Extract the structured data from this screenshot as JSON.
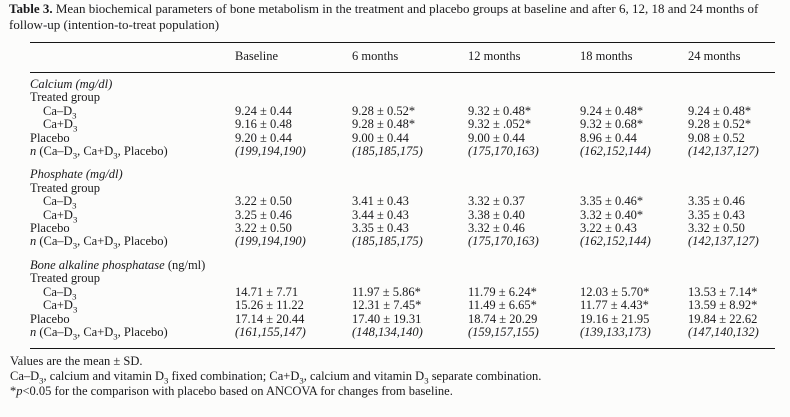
{
  "caption": {
    "label": "Table 3.",
    "text": "Mean biochemical parameters of bone metabolism in the treatment and placebo groups at baseline and after 6, 12, 18 and 24 months of follow-up (intention-to-treat population)"
  },
  "table": {
    "column_headers": [
      "Baseline",
      "6 months",
      "12 months",
      "18 months",
      "24 months"
    ],
    "sections": [
      {
        "name_italic": "Calcium (mg/dl)",
        "unit_upright": "",
        "rows": [
          {
            "label": "Treated group",
            "indent": false,
            "values": []
          },
          {
            "label": "Ca–D₃",
            "indent": true,
            "values": [
              "9.24 ± 0.44",
              "9.28 ± 0.52*",
              "9.32 ± 0.48*",
              "9.24 ± 0.48*",
              "9.24 ± 0.48*"
            ]
          },
          {
            "label": "Ca+D₃",
            "indent": true,
            "values": [
              "9.16 ± 0.48",
              "9.28 ± 0.48*",
              "9.32 ± .052*",
              "9.32 ± 0.68*",
              "9.28 ± 0.52*"
            ]
          },
          {
            "label": "Placebo",
            "indent": false,
            "values": [
              "9.20 ± 0.44",
              "9.00 ± 0.44",
              "9.00 ± 0.44",
              "8.96 ± 0.44",
              "9.08 ± 0.52"
            ]
          },
          {
            "label_italic_prefix": "n",
            "label": " (Ca–D₃, Ca+D₃, Placebo)",
            "indent": false,
            "values_italic": true,
            "values": [
              "(199,194,190)",
              "(185,185,175)",
              "(175,170,163)",
              "(162,152,144)",
              "(142,137,127)"
            ]
          }
        ]
      },
      {
        "name_italic": "Phosphate (mg/dl)",
        "unit_upright": "",
        "rows": [
          {
            "label": "Treated group",
            "indent": false,
            "values": []
          },
          {
            "label": "Ca–D₃",
            "indent": true,
            "values": [
              "3.22 ± 0.50",
              "3.41 ± 0.43",
              "3.32 ± 0.37",
              "3.35 ± 0.46*",
              "3.35 ± 0.46"
            ]
          },
          {
            "label": "Ca+D₃",
            "indent": true,
            "values": [
              "3.25 ± 0.46",
              "3.44 ± 0.43",
              "3.38 ± 0.40",
              "3.32 ± 0.40*",
              "3.35 ± 0.43"
            ]
          },
          {
            "label": "Placebo",
            "indent": false,
            "values": [
              "3.22 ± 0.50",
              "3.35 ± 0.43",
              "3.32 ± 0.46",
              "3.22 ± 0.43",
              "3.32 ± 0.50"
            ]
          },
          {
            "label_italic_prefix": "n",
            "label": " (Ca–D₃, Ca+D₃, Placebo)",
            "indent": false,
            "values_italic": true,
            "values": [
              "(199,194,190)",
              "(185,185,175)",
              "(175,170,163)",
              "(162,152,144)",
              "(142,137,127)"
            ]
          }
        ]
      },
      {
        "name_italic": "Bone alkaline phosphatase",
        "unit_upright": "(ng/ml)",
        "rows": [
          {
            "label": "Treated group",
            "indent": false,
            "values": []
          },
          {
            "label": "Ca–D₃",
            "indent": true,
            "values": [
              "14.71 ± 7.71",
              "11.97 ± 5.86*",
              "11.79 ± 6.24*",
              "12.03 ± 5.70*",
              "13.53 ± 7.14*"
            ]
          },
          {
            "label": "Ca+D₃",
            "indent": true,
            "values": [
              "15.26 ± 11.22",
              "12.31 ± 7.45*",
              "11.49 ± 6.65*",
              "11.77 ± 4.43*",
              "13.59 ± 8.92*"
            ]
          },
          {
            "label": "Placebo",
            "indent": false,
            "values": [
              "17.14 ± 20.44",
              "17.40 ± 19.31",
              "18.74 ± 20.29",
              "19.16 ± 21.95",
              "19.84 ± 22.62"
            ]
          },
          {
            "label_italic_prefix": "n",
            "label": " (Ca–D₃, Ca+D₃, Placebo)",
            "indent": false,
            "values_italic": true,
            "values": [
              "(161,155,147)",
              "(148,134,140)",
              "(159,157,155)",
              "(139,133,173)",
              "(147,140,132)"
            ]
          }
        ]
      }
    ]
  },
  "footnotes": {
    "mean_sd": "Values are the mean ± SD.",
    "abbreviations": "Ca–D₃, calcium and vitamin D₃ fixed combination; Ca+D₃, calcium and vitamin D₃ separate combination.",
    "significance_star": "*",
    "significance_p": "p",
    "significance_rest": "<0.05 for the comparison with placebo based on ANCOVA for changes from baseline."
  },
  "colors": {
    "background": "#fcfcfb",
    "text": "#1a1a1c",
    "rule": "#161616"
  }
}
